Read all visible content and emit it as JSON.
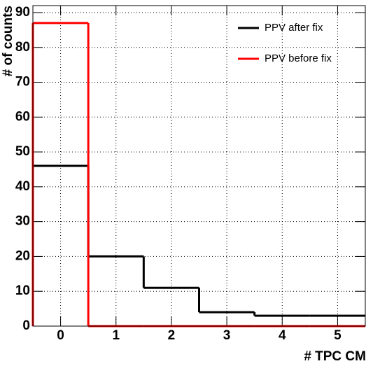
{
  "chart_data": {
    "type": "histogram",
    "x_label": "# TPC CM",
    "y_label": "# of counts",
    "bins": [
      -0.5,
      0.5,
      1.5,
      2.5,
      3.5,
      4.5,
      5.5
    ],
    "series": [
      {
        "name": "PPV after fix",
        "color": "#000000",
        "values": [
          46,
          20,
          11,
          4,
          3,
          3
        ]
      },
      {
        "name": "PPV before fix",
        "color": "#ff0000",
        "values": [
          87,
          0,
          0,
          0,
          0,
          0
        ]
      }
    ],
    "xlim": [
      -0.5,
      5.5
    ],
    "xticks": [
      0,
      1,
      2,
      3,
      4,
      5
    ],
    "ylim": [
      0,
      92
    ],
    "yticks": [
      0,
      10,
      20,
      30,
      40,
      50,
      60,
      70,
      80,
      90
    ],
    "grid": true,
    "legend": "upper right"
  }
}
